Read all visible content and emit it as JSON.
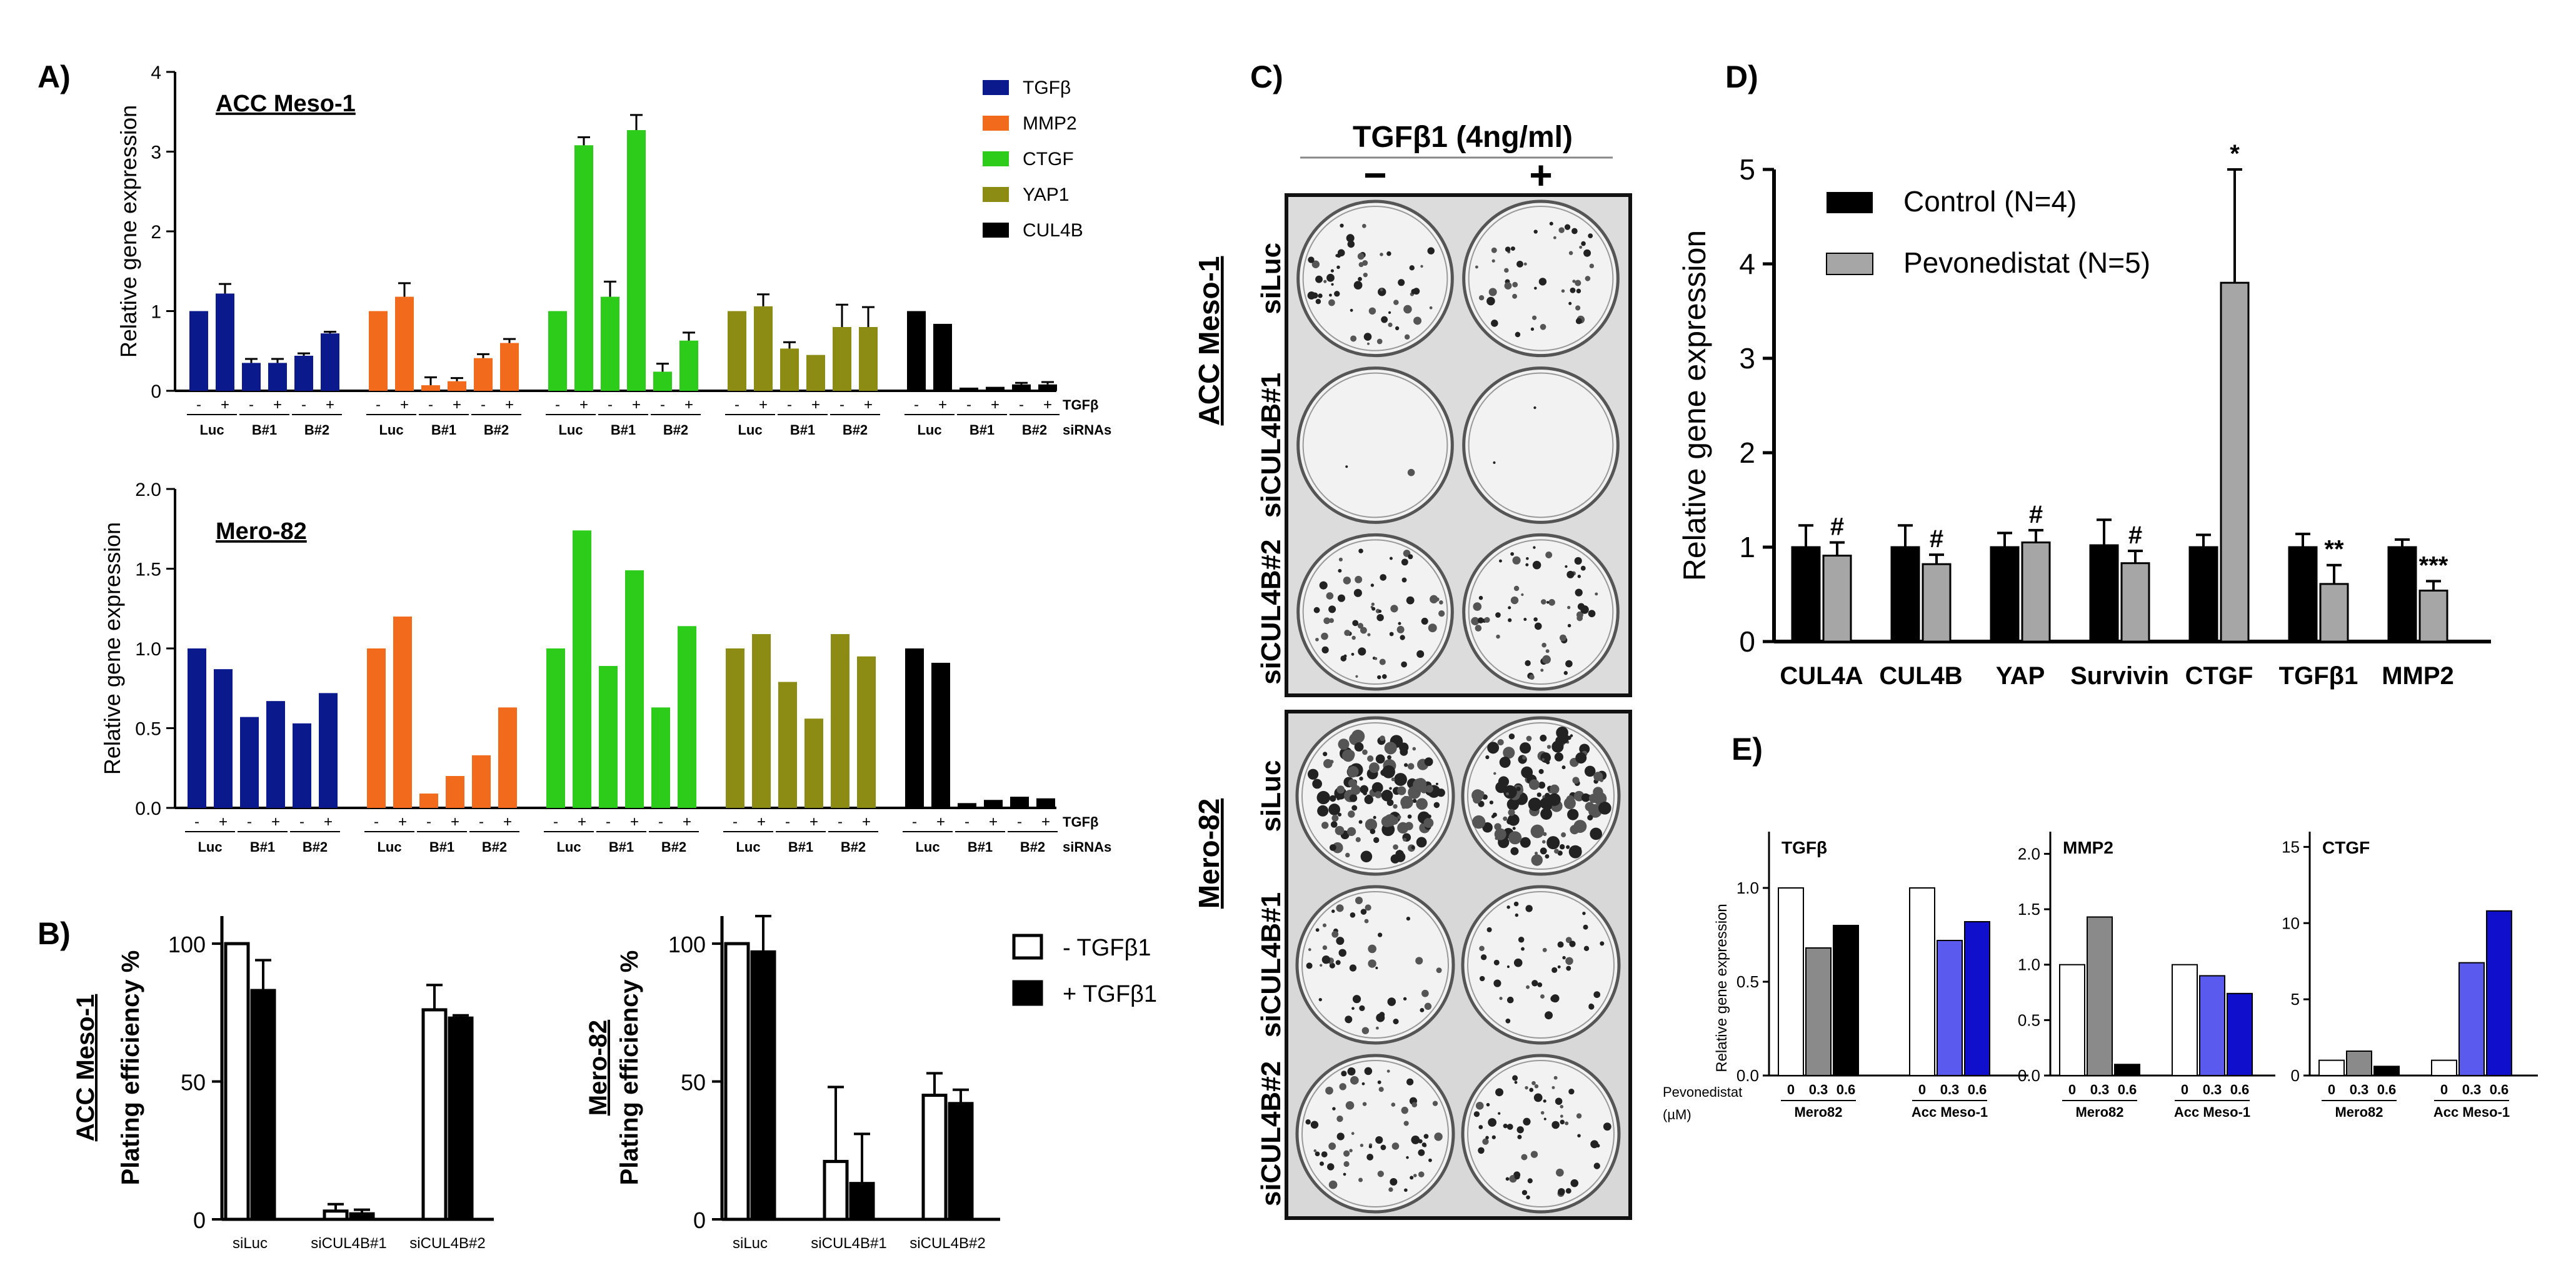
{
  "panel_labels": {
    "a": "A)",
    "b": "B)",
    "c": "C)",
    "d": "D)",
    "e": "E)"
  },
  "colors": {
    "tgfb": "#0a1a8c",
    "mmp2": "#f26b1d",
    "ctgf": "#2ecc1a",
    "yap1": "#8c8c14",
    "cul4b": "#000000",
    "white": "#ffffff",
    "black": "#000000",
    "grey": "#a6a6a6",
    "lightblue": "#5a5aee",
    "blue": "#1010cc",
    "darkgrey": "#8a8a8a"
  },
  "panel_a": {
    "legend": [
      "TGFβ",
      "MMP2",
      "CTGF",
      "YAP1",
      "CUL4B"
    ],
    "tgf_label": "TGFβ",
    "sirna_label": "siRNAs",
    "groups": [
      "Luc",
      "B#1",
      "B#2"
    ],
    "sign_minus": "-",
    "sign_plus": "+"
  },
  "panel_c": {
    "title": "TGFβ1 (4ng/ml)",
    "minus": "−",
    "plus": "+",
    "cell_lines": [
      "ACC Meso-1",
      "Mero-82"
    ],
    "row_labels": [
      "siLuc",
      "siCUL4B#1",
      "siCUL4B#2"
    ]
  },
  "panel_e": {
    "ylabel": "Relative gene expression",
    "treatment_label": "Pevonedistat",
    "unit_label": "(µM)",
    "doses": [
      "0",
      "0.3",
      "0.6"
    ],
    "groups": [
      "Mero82",
      "Acc Meso-1"
    ]
  },
  "chart_data": [
    {
      "id": "A1",
      "type": "bar",
      "title": "ACC Meso-1",
      "xlabel": "",
      "ylabel": "Relative gene expression",
      "ylim": [
        0,
        4
      ],
      "yticks": [
        "0",
        "1",
        "2",
        "3",
        "4"
      ],
      "categories": [
        "Luc -",
        "Luc +",
        "B#1 -",
        "B#1 +",
        "B#2 -",
        "B#2 +"
      ],
      "series": [
        {
          "name": "TGFβ",
          "values": [
            1.0,
            1.22,
            0.35,
            0.35,
            0.44,
            0.72
          ],
          "errors": [
            0,
            0.12,
            0.05,
            0.05,
            0.03,
            0.02
          ]
        },
        {
          "name": "MMP2",
          "values": [
            1.0,
            1.18,
            0.07,
            0.12,
            0.41,
            0.6
          ],
          "errors": [
            0,
            0.17,
            0.1,
            0.04,
            0.05,
            0.05
          ]
        },
        {
          "name": "CTGF",
          "values": [
            1.0,
            3.08,
            1.18,
            3.27,
            0.24,
            0.63
          ],
          "errors": [
            0,
            0.1,
            0.19,
            0.19,
            0.1,
            0.1
          ]
        },
        {
          "name": "YAP1",
          "values": [
            1.0,
            1.06,
            0.53,
            0.45,
            0.8,
            0.8
          ],
          "errors": [
            0,
            0.15,
            0.08,
            0,
            0.28,
            0.25
          ]
        },
        {
          "name": "CUL4B",
          "values": [
            1.0,
            0.84,
            0.04,
            0.05,
            0.08,
            0.08
          ],
          "errors": [
            0,
            0,
            0,
            0,
            0.02,
            0.03
          ]
        }
      ]
    },
    {
      "id": "A2",
      "type": "bar",
      "title": "Mero-82",
      "xlabel": "",
      "ylabel": "Relative gene expression",
      "ylim": [
        0,
        2
      ],
      "yticks": [
        "0.0",
        "0.5",
        "1.0",
        "1.5",
        "2.0"
      ],
      "categories": [
        "Luc -",
        "Luc +",
        "B#1 -",
        "B#1 +",
        "B#2 -",
        "B#2 +"
      ],
      "series": [
        {
          "name": "TGFβ",
          "values": [
            1.0,
            0.87,
            0.57,
            0.67,
            0.53,
            0.72
          ]
        },
        {
          "name": "MMP2",
          "values": [
            1.0,
            1.2,
            0.09,
            0.2,
            0.33,
            0.63
          ]
        },
        {
          "name": "CTGF",
          "values": [
            1.0,
            1.74,
            0.89,
            1.49,
            0.63,
            1.14
          ]
        },
        {
          "name": "YAP1",
          "values": [
            1.0,
            1.09,
            0.79,
            0.56,
            1.09,
            0.95
          ]
        },
        {
          "name": "CUL4B",
          "values": [
            1.0,
            0.91,
            0.03,
            0.05,
            0.07,
            0.06
          ]
        }
      ]
    },
    {
      "id": "B1",
      "type": "bar",
      "ylabel_top": "ACC Meso-1",
      "ylabel": "Plating efficiency %",
      "ylim": [
        0,
        110
      ],
      "yticks": [
        "0",
        "50",
        "100"
      ],
      "categories": [
        "siLuc",
        "siCUL4B#1",
        "siCUL4B#2"
      ],
      "series": [
        {
          "name": "- TGFβ1",
          "values": [
            100,
            3,
            76
          ],
          "errors": [
            0,
            2.5,
            9
          ]
        },
        {
          "name": "+ TGFβ1",
          "values": [
            83,
            2,
            73
          ],
          "errors": [
            11,
            1.5,
            1
          ]
        }
      ]
    },
    {
      "id": "B2",
      "type": "bar",
      "ylabel_top": "Mero-82",
      "ylabel": "Plating efficiency %",
      "ylim": [
        0,
        110
      ],
      "yticks": [
        "0",
        "50",
        "100"
      ],
      "categories": [
        "siLuc",
        "siCUL4B#1",
        "siCUL4B#2"
      ],
      "series": [
        {
          "name": "- TGFβ1",
          "values": [
            100,
            21,
            45
          ],
          "errors": [
            0,
            27,
            8
          ]
        },
        {
          "name": "+ TGFβ1",
          "values": [
            97,
            13,
            42
          ],
          "errors": [
            13,
            18,
            5
          ]
        }
      ],
      "legend": [
        "- TGFβ1",
        "+ TGFβ1"
      ]
    },
    {
      "id": "D",
      "type": "bar",
      "xlabel": "",
      "ylabel": "Relative gene expression",
      "ylim": [
        0,
        5
      ],
      "yticks": [
        "0",
        "1",
        "2",
        "3",
        "4",
        "5"
      ],
      "categories": [
        "CUL4A",
        "CUL4B",
        "YAP",
        "Survivin",
        "CTGF",
        "TGFβ1",
        "MMP2"
      ],
      "series": [
        {
          "name": "Control (N=4)",
          "values": [
            1.0,
            1.0,
            1.0,
            1.02,
            1.0,
            1.0,
            1.0
          ],
          "errors": [
            0.23,
            0.23,
            0.15,
            0.27,
            0.13,
            0.14,
            0.08
          ]
        },
        {
          "name": "Pevonedistat (N=5)",
          "values": [
            0.91,
            0.82,
            1.05,
            0.83,
            3.8,
            0.61,
            0.54
          ],
          "errors": [
            0.14,
            0.1,
            0.13,
            0.13,
            1.2,
            0.2,
            0.1
          ]
        }
      ],
      "annotations": [
        "#",
        "#",
        "#",
        "#",
        "*",
        "**",
        "***"
      ]
    },
    {
      "id": "E1",
      "type": "bar",
      "title": "TGFβ",
      "ylim": [
        0,
        1.3
      ],
      "yticks": [
        "0.0",
        "0.5",
        "1.0"
      ],
      "groups": [
        "Mero82",
        "Acc Meso-1"
      ],
      "doses": [
        "0",
        "0.3",
        "0.6"
      ],
      "values": [
        [
          1.0,
          0.68,
          0.8
        ],
        [
          1.0,
          0.72,
          0.82
        ]
      ]
    },
    {
      "id": "E2",
      "type": "bar",
      "title": "MMP2",
      "ylim": [
        0,
        2.2
      ],
      "yticks": [
        "0.0",
        "0.5",
        "1.0",
        "1.5",
        "2.0"
      ],
      "groups": [
        "Mero82",
        "Acc Meso-1"
      ],
      "doses": [
        "0",
        "0.3",
        "0.6"
      ],
      "values": [
        [
          1.0,
          1.43,
          0.1
        ],
        [
          1.0,
          0.9,
          0.74
        ]
      ]
    },
    {
      "id": "E3",
      "type": "bar",
      "title": "CTGF",
      "ylim": [
        0,
        16
      ],
      "yticks": [
        "0",
        "5",
        "10",
        "15"
      ],
      "groups": [
        "Mero82",
        "Acc Meso-1"
      ],
      "doses": [
        "0",
        "0.3",
        "0.6"
      ],
      "values": [
        [
          1.0,
          1.6,
          0.6
        ],
        [
          1.0,
          7.4,
          10.8
        ]
      ]
    }
  ]
}
